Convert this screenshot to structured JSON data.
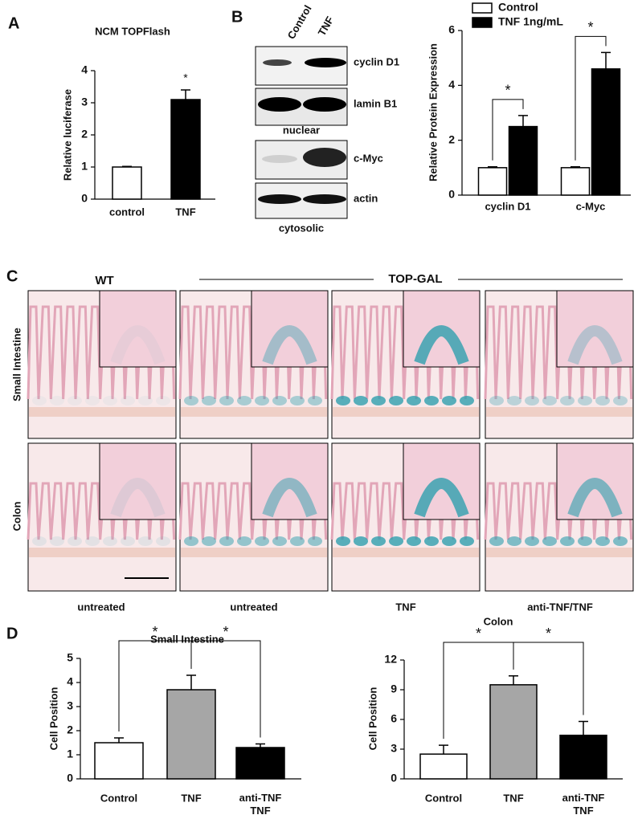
{
  "chart_data": [
    {
      "type": "bar",
      "title": "NCM TOPFlash",
      "ylabel": "Relative luciferase",
      "categories": [
        "control",
        "TNF"
      ],
      "values": [
        1,
        3.1
      ],
      "errors": [
        0.02,
        0.3
      ],
      "colors": [
        "#ffffff",
        "#000000"
      ],
      "ylim": [
        0,
        4
      ],
      "yticks": [
        0,
        1,
        2,
        3,
        4
      ],
      "annotations": [
        "*"
      ]
    },
    {
      "type": "grouped_bar",
      "ylabel": "Relative Protein Expression",
      "categories": [
        "cyclin D1",
        "c-Myc"
      ],
      "series": [
        {
          "name": "Control",
          "color": "#ffffff",
          "values": [
            1,
            1
          ],
          "errors": [
            0.03,
            0.03
          ]
        },
        {
          "name": "TNF 1ng/mL",
          "color": "#000000",
          "values": [
            2.5,
            4.6
          ],
          "errors": [
            0.4,
            0.6
          ]
        }
      ],
      "ylim": [
        0,
        6
      ],
      "yticks": [
        0,
        2,
        4,
        6
      ],
      "legend": "top",
      "annotations": [
        "*",
        "*"
      ]
    },
    {
      "type": "bar",
      "title": "Small Intestine",
      "ylabel": "Cell Position",
      "categories": [
        "Control",
        "TNF",
        "anti-TNF\nTNF"
      ],
      "values": [
        1.5,
        3.7,
        1.3
      ],
      "errors": [
        0.2,
        0.6,
        0.15
      ],
      "colors": [
        "#ffffff",
        "#a6a6a6",
        "#000000"
      ],
      "ylim": [
        0,
        5
      ],
      "yticks": [
        0,
        1,
        2,
        3,
        4,
        5
      ],
      "annotations": [
        "*",
        "*"
      ]
    },
    {
      "type": "bar",
      "title": "Colon",
      "ylabel": "Cell Position",
      "categories": [
        "Control",
        "TNF",
        "anti-TNF\nTNF"
      ],
      "values": [
        2.5,
        9.5,
        4.4
      ],
      "errors": [
        0.9,
        0.9,
        1.4
      ],
      "colors": [
        "#ffffff",
        "#a6a6a6",
        "#000000"
      ],
      "ylim": [
        0,
        12
      ],
      "yticks": [
        0,
        3,
        6,
        9,
        12
      ],
      "annotations": [
        "*",
        "*"
      ]
    }
  ],
  "panels": [
    "A",
    "B",
    "C",
    "D"
  ],
  "blot": {
    "columns": [
      "Control",
      "TNF"
    ],
    "rows": [
      "cyclin D1",
      "lamin B1",
      "c-Myc",
      "actin"
    ],
    "fractions": [
      "nuclear",
      "cytosolic"
    ]
  },
  "histology": {
    "groups": [
      "WT",
      "TOP-GAL"
    ],
    "rows": [
      "Small Intestine",
      "Colon"
    ],
    "treatments": [
      "untreated",
      "untreated",
      "TNF",
      "anti-TNF/TNF"
    ]
  }
}
